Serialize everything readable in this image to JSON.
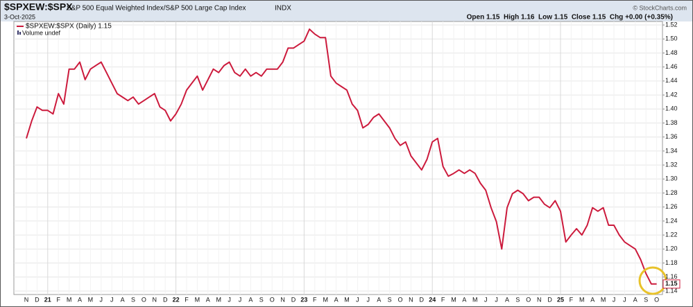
{
  "chart_data": {
    "type": "line",
    "title": "$SPXEW:$SPX",
    "subtitle": "S&P 500 Equal Weighted Index/S&P 500 Large Cap Index",
    "exchange": "INDX",
    "date": "3-Oct-2025",
    "quote": "Open 1.15  High 1.16  Low 1.15  Close 1.15  Chg +0.00 (+0.35%)",
    "watermark": "© StockCharts.com",
    "volume_label": "Volume undef",
    "last_value": 1.15,
    "categories": [
      "N",
      null,
      "D",
      null,
      "21",
      null,
      "F",
      null,
      "M",
      null,
      "A",
      null,
      "M",
      null,
      "J",
      null,
      "J",
      null,
      "A",
      null,
      "S",
      null,
      "O",
      null,
      "N",
      null,
      "D",
      null,
      "22",
      null,
      "F",
      null,
      "M",
      null,
      "A",
      null,
      "M",
      null,
      "J",
      null,
      "J",
      null,
      "A",
      null,
      "S",
      null,
      "O",
      null,
      "N",
      null,
      "D",
      null,
      "23",
      null,
      "F",
      null,
      "M",
      null,
      "A",
      null,
      "M",
      null,
      "J",
      null,
      "J",
      null,
      "A",
      null,
      "S",
      null,
      "O",
      null,
      "N",
      null,
      "D",
      null,
      "24",
      null,
      "F",
      null,
      "M",
      null,
      "A",
      null,
      "M",
      null,
      "J",
      null,
      "J",
      null,
      "A",
      null,
      "S",
      null,
      "O",
      null,
      "N",
      null,
      "D",
      null,
      "25",
      null,
      "F",
      null,
      "M",
      null,
      "A",
      null,
      "M",
      null,
      "J",
      null,
      "J",
      null,
      "A",
      null,
      "S",
      null,
      "O"
    ],
    "series": [
      {
        "name": "$SPXEW:$SPX (Daily) 1.15",
        "color": "#cc1a3c",
        "values": [
          1.358,
          1.383,
          1.403,
          1.398,
          1.398,
          1.393,
          1.422,
          1.407,
          1.457,
          1.457,
          1.467,
          1.442,
          1.457,
          1.462,
          1.467,
          1.452,
          1.437,
          1.422,
          1.417,
          1.412,
          1.417,
          1.407,
          1.412,
          1.417,
          1.422,
          1.403,
          1.398,
          1.383,
          1.393,
          1.407,
          1.427,
          1.437,
          1.447,
          1.427,
          1.442,
          1.457,
          1.452,
          1.462,
          1.467,
          1.452,
          1.447,
          1.457,
          1.447,
          1.452,
          1.447,
          1.457,
          1.457,
          1.457,
          1.467,
          1.487,
          1.487,
          1.492,
          1.497,
          1.514,
          1.507,
          1.502,
          1.502,
          1.447,
          1.437,
          1.432,
          1.427,
          1.407,
          1.398,
          1.373,
          1.378,
          1.388,
          1.393,
          1.383,
          1.373,
          1.358,
          1.348,
          1.353,
          1.333,
          1.323,
          1.313,
          1.328,
          1.353,
          1.358,
          1.318,
          1.304,
          1.308,
          1.313,
          1.308,
          1.313,
          1.308,
          1.294,
          1.284,
          1.259,
          1.239,
          1.2,
          1.259,
          1.279,
          1.284,
          1.279,
          1.269,
          1.274,
          1.274,
          1.264,
          1.259,
          1.269,
          1.254,
          1.21,
          1.22,
          1.229,
          1.22,
          1.234,
          1.259,
          1.254,
          1.259,
          1.234,
          1.234,
          1.22,
          1.21,
          1.205,
          1.2,
          1.185,
          1.165,
          1.15,
          1.15
        ]
      }
    ],
    "ylim": [
      1.135,
      1.525
    ],
    "yticks": [
      1.14,
      1.16,
      1.18,
      {
        "value": 1.2,
        "label": "1.20"
      },
      1.22,
      1.24,
      1.26,
      1.28,
      {
        "value": 1.3,
        "label": "1.30"
      },
      1.32,
      1.34,
      1.36,
      1.38,
      {
        "value": 1.4,
        "label": "1.40"
      },
      1.42,
      1.44,
      1.46,
      1.48,
      {
        "value": 1.5,
        "label": "1.50"
      },
      1.52
    ],
    "grid": true
  }
}
